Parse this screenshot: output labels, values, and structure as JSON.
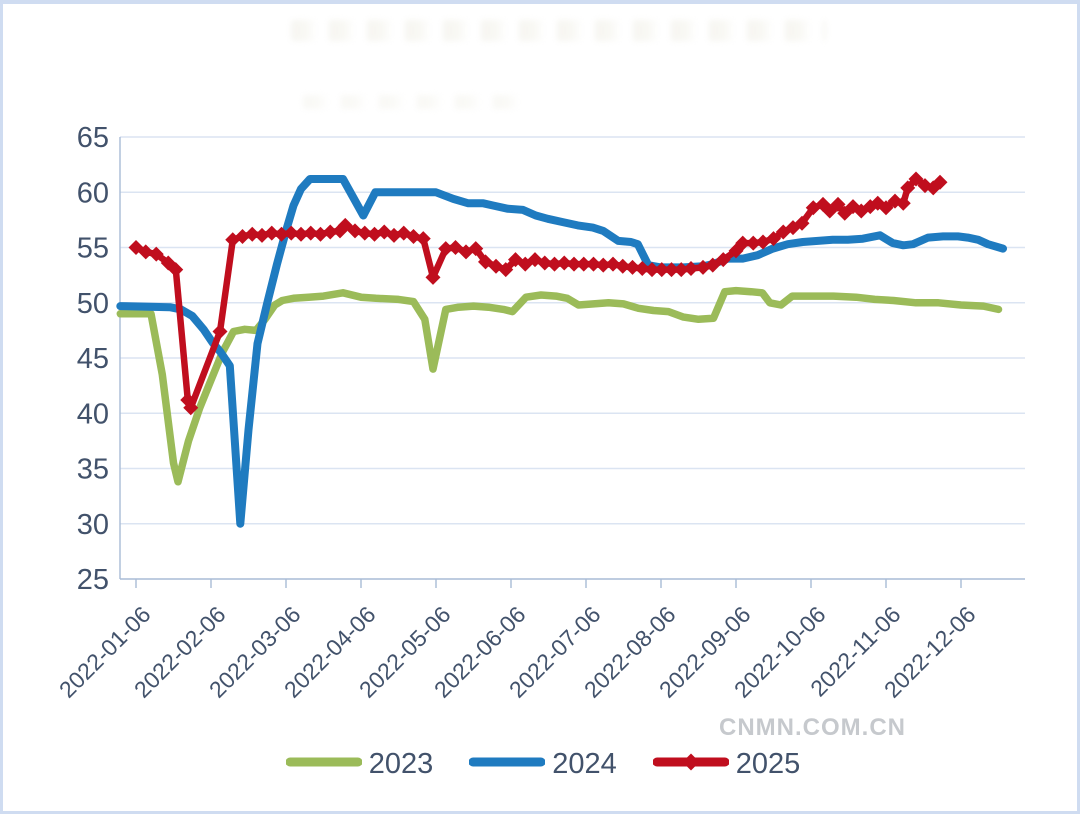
{
  "page": {
    "frame_border_color": "#cfdcf1",
    "background": "#ffffff",
    "title_note": ""
  },
  "watermark": {
    "text": "CNMN.COM.CN",
    "color": "#c6c9cd"
  },
  "style": {
    "axis_text_color": "#42526b",
    "grid_color": "#dbe4f2",
    "axis_line_color": "#a9bbd6"
  },
  "chart_data": {
    "type": "line",
    "title": "",
    "grid": true,
    "x_axis": {
      "tick_labels": [
        "2022-01-06",
        "2022-02-06",
        "2022-03-06",
        "2022-04-06",
        "2022-05-06",
        "2022-06-06",
        "2022-07-06",
        "2022-08-06",
        "2022-09-06",
        "2022-10-06",
        "2022-11-06",
        "2022-12-06"
      ],
      "label_angle_deg": -45,
      "x_unit": "months since 2022-01-06 (one tick per month)"
    },
    "y_axis": {
      "min": 25,
      "max": 65,
      "step": 5,
      "tick_labels": [
        "25",
        "30",
        "35",
        "40",
        "45",
        "50",
        "55",
        "60",
        "65"
      ]
    },
    "legend": {
      "position": "bottom",
      "entries": [
        "2023",
        "2024",
        "2025"
      ]
    },
    "series": [
      {
        "name": "2023",
        "color": "#9BBB59",
        "marker": "none",
        "points": [
          [
            -0.21,
            49.0
          ],
          [
            0.2,
            49.0
          ],
          [
            0.35,
            43.5
          ],
          [
            0.5,
            35.5
          ],
          [
            0.56,
            33.8
          ],
          [
            0.7,
            37.5
          ],
          [
            0.85,
            40.5
          ],
          [
            1.0,
            43.0
          ],
          [
            1.15,
            45.5
          ],
          [
            1.3,
            47.4
          ],
          [
            1.45,
            47.6
          ],
          [
            1.6,
            47.5
          ],
          [
            1.72,
            48.5
          ],
          [
            1.85,
            49.8
          ],
          [
            1.95,
            50.2
          ],
          [
            2.1,
            50.4
          ],
          [
            2.3,
            50.5
          ],
          [
            2.5,
            50.6
          ],
          [
            2.76,
            50.9
          ],
          [
            3.0,
            50.5
          ],
          [
            3.2,
            50.4
          ],
          [
            3.5,
            50.3
          ],
          [
            3.7,
            50.1
          ],
          [
            3.85,
            48.5
          ],
          [
            3.96,
            44.0
          ],
          [
            4.13,
            49.4
          ],
          [
            4.3,
            49.6
          ],
          [
            4.5,
            49.7
          ],
          [
            4.7,
            49.6
          ],
          [
            4.9,
            49.4
          ],
          [
            5.02,
            49.2
          ],
          [
            5.2,
            50.5
          ],
          [
            5.4,
            50.7
          ],
          [
            5.6,
            50.6
          ],
          [
            5.75,
            50.4
          ],
          [
            5.9,
            49.8
          ],
          [
            6.1,
            49.9
          ],
          [
            6.3,
            50.0
          ],
          [
            6.5,
            49.9
          ],
          [
            6.7,
            49.5
          ],
          [
            6.9,
            49.3
          ],
          [
            7.1,
            49.2
          ],
          [
            7.3,
            48.7
          ],
          [
            7.5,
            48.5
          ],
          [
            7.7,
            48.6
          ],
          [
            7.85,
            51.0
          ],
          [
            8.0,
            51.1
          ],
          [
            8.2,
            51.0
          ],
          [
            8.35,
            50.9
          ],
          [
            8.45,
            50.0
          ],
          [
            8.6,
            49.8
          ],
          [
            8.75,
            50.6
          ],
          [
            9.0,
            50.6
          ],
          [
            9.3,
            50.6
          ],
          [
            9.6,
            50.5
          ],
          [
            9.85,
            50.3
          ],
          [
            10.1,
            50.2
          ],
          [
            10.4,
            50.0
          ],
          [
            10.7,
            50.0
          ],
          [
            11.0,
            49.8
          ],
          [
            11.3,
            49.7
          ],
          [
            11.5,
            49.4
          ]
        ]
      },
      {
        "name": "2024",
        "color": "#1F7BC0",
        "marker": "none",
        "points": [
          [
            -0.21,
            49.7
          ],
          [
            0.45,
            49.6
          ],
          [
            0.6,
            49.4
          ],
          [
            0.75,
            48.8
          ],
          [
            0.9,
            47.6
          ],
          [
            1.02,
            46.4
          ],
          [
            1.12,
            45.6
          ],
          [
            1.25,
            44.3
          ],
          [
            1.39,
            30.0
          ],
          [
            1.5,
            38.5
          ],
          [
            1.62,
            46.3
          ],
          [
            1.75,
            50.0
          ],
          [
            1.88,
            53.5
          ],
          [
            2.0,
            56.5
          ],
          [
            2.1,
            58.8
          ],
          [
            2.2,
            60.3
          ],
          [
            2.32,
            61.2
          ],
          [
            2.76,
            61.2
          ],
          [
            3.03,
            57.9
          ],
          [
            3.19,
            60.0
          ],
          [
            3.6,
            60.0
          ],
          [
            4.0,
            60.0
          ],
          [
            4.23,
            59.4
          ],
          [
            4.43,
            59.0
          ],
          [
            4.63,
            59.0
          ],
          [
            4.76,
            58.8
          ],
          [
            4.96,
            58.5
          ],
          [
            5.16,
            58.4
          ],
          [
            5.33,
            57.9
          ],
          [
            5.49,
            57.6
          ],
          [
            5.69,
            57.3
          ],
          [
            5.89,
            57.0
          ],
          [
            6.09,
            56.8
          ],
          [
            6.23,
            56.5
          ],
          [
            6.43,
            55.6
          ],
          [
            6.6,
            55.5
          ],
          [
            6.69,
            55.3
          ],
          [
            6.83,
            53.4
          ],
          [
            7.0,
            53.2
          ],
          [
            7.3,
            53.2
          ],
          [
            7.56,
            53.3
          ],
          [
            7.69,
            53.5
          ],
          [
            7.89,
            54.0
          ],
          [
            8.09,
            54.0
          ],
          [
            8.29,
            54.3
          ],
          [
            8.49,
            54.9
          ],
          [
            8.69,
            55.3
          ],
          [
            8.89,
            55.5
          ],
          [
            9.09,
            55.6
          ],
          [
            9.29,
            55.7
          ],
          [
            9.49,
            55.7
          ],
          [
            9.69,
            55.8
          ],
          [
            9.92,
            56.1
          ],
          [
            10.09,
            55.4
          ],
          [
            10.23,
            55.2
          ],
          [
            10.36,
            55.3
          ],
          [
            10.56,
            55.9
          ],
          [
            10.76,
            56.0
          ],
          [
            10.96,
            56.0
          ],
          [
            11.09,
            55.9
          ],
          [
            11.23,
            55.7
          ],
          [
            11.36,
            55.3
          ],
          [
            11.56,
            54.9
          ]
        ]
      },
      {
        "name": "2025",
        "color": "#C00E1E",
        "marker": "diamond",
        "points": [
          [
            0.0,
            55.0
          ],
          [
            0.13,
            54.6
          ],
          [
            0.27,
            54.4
          ],
          [
            0.43,
            53.6
          ],
          [
            0.53,
            53.0
          ],
          [
            0.69,
            41.2
          ],
          [
            0.73,
            40.5
          ],
          [
            1.12,
            47.4
          ],
          [
            1.29,
            55.7
          ],
          [
            1.42,
            56.0
          ],
          [
            1.55,
            56.2
          ],
          [
            1.68,
            56.1
          ],
          [
            1.81,
            56.3
          ],
          [
            1.94,
            56.2
          ],
          [
            2.07,
            56.3
          ],
          [
            2.2,
            56.2
          ],
          [
            2.33,
            56.3
          ],
          [
            2.46,
            56.2
          ],
          [
            2.59,
            56.4
          ],
          [
            2.72,
            56.5
          ],
          [
            2.79,
            57.0
          ],
          [
            2.92,
            56.5
          ],
          [
            3.05,
            56.3
          ],
          [
            3.18,
            56.2
          ],
          [
            3.31,
            56.4
          ],
          [
            3.44,
            56.1
          ],
          [
            3.57,
            56.3
          ],
          [
            3.7,
            56.0
          ],
          [
            3.83,
            55.8
          ],
          [
            3.96,
            52.3
          ],
          [
            4.13,
            54.9
          ],
          [
            4.26,
            55.0
          ],
          [
            4.4,
            54.6
          ],
          [
            4.53,
            54.9
          ],
          [
            4.66,
            53.7
          ],
          [
            4.8,
            53.3
          ],
          [
            4.93,
            53.0
          ],
          [
            5.06,
            53.9
          ],
          [
            5.19,
            53.5
          ],
          [
            5.32,
            53.9
          ],
          [
            5.45,
            53.6
          ],
          [
            5.58,
            53.5
          ],
          [
            5.71,
            53.6
          ],
          [
            5.84,
            53.5
          ],
          [
            5.97,
            53.5
          ],
          [
            6.1,
            53.5
          ],
          [
            6.23,
            53.4
          ],
          [
            6.36,
            53.5
          ],
          [
            6.49,
            53.3
          ],
          [
            6.62,
            53.2
          ],
          [
            6.75,
            53.1
          ],
          [
            6.88,
            53.0
          ],
          [
            7.01,
            53.0
          ],
          [
            7.14,
            53.0
          ],
          [
            7.27,
            53.0
          ],
          [
            7.4,
            53.1
          ],
          [
            7.56,
            53.2
          ],
          [
            7.69,
            53.4
          ],
          [
            7.83,
            53.9
          ],
          [
            8.0,
            54.7
          ],
          [
            8.09,
            55.4
          ],
          [
            8.23,
            55.4
          ],
          [
            8.36,
            55.5
          ],
          [
            8.5,
            55.8
          ],
          [
            8.63,
            56.4
          ],
          [
            8.76,
            56.8
          ],
          [
            8.88,
            57.2
          ],
          [
            9.03,
            58.6
          ],
          [
            9.16,
            58.9
          ],
          [
            9.25,
            58.3
          ],
          [
            9.36,
            58.9
          ],
          [
            9.45,
            58.1
          ],
          [
            9.56,
            58.7
          ],
          [
            9.67,
            58.3
          ],
          [
            9.79,
            58.7
          ],
          [
            9.89,
            59.0
          ],
          [
            10.0,
            58.6
          ],
          [
            10.12,
            59.2
          ],
          [
            10.23,
            59.0
          ],
          [
            10.29,
            60.4
          ],
          [
            10.4,
            61.2
          ],
          [
            10.52,
            60.6
          ],
          [
            10.63,
            60.4
          ],
          [
            10.72,
            60.9
          ]
        ]
      }
    ]
  }
}
